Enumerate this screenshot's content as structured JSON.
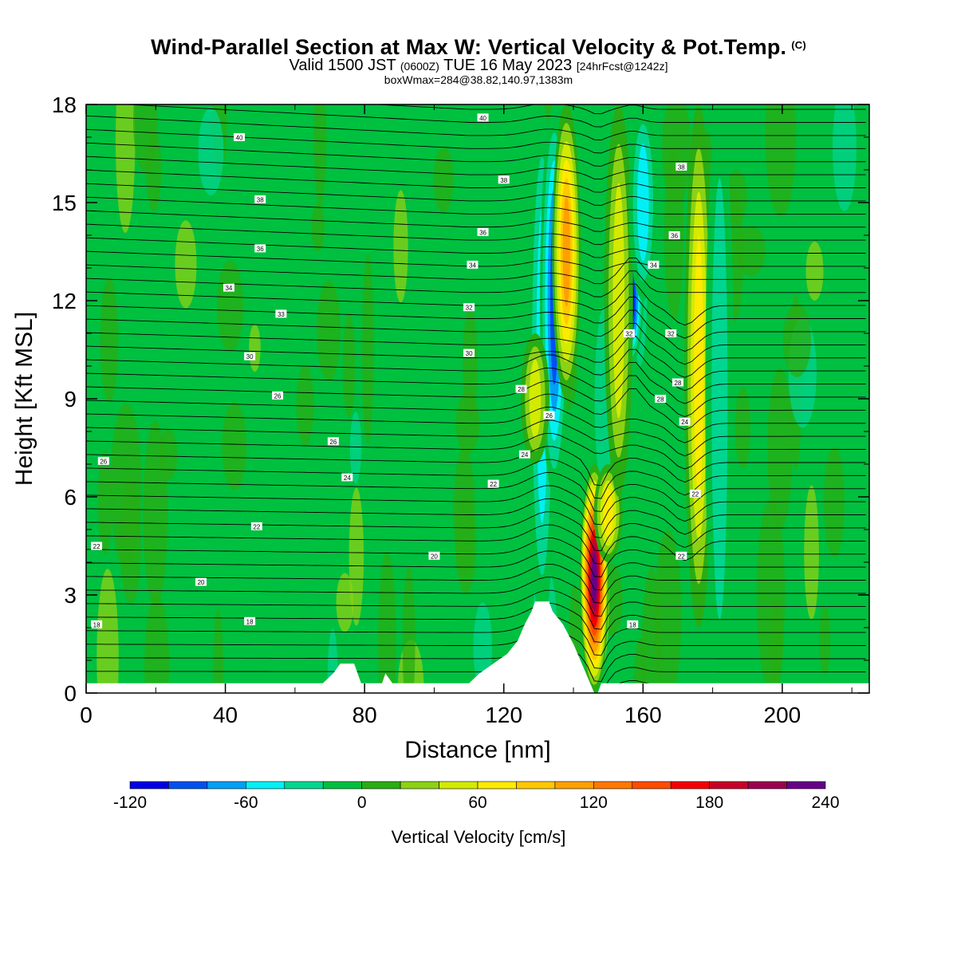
{
  "header": {
    "title": "Wind-Parallel Section at Max W: Vertical Velocity & Pot.Temp.",
    "copyright": "(C)",
    "valid_prefix": "Valid 1500 JST",
    "valid_utc": "(0600Z)",
    "valid_date": "TUE 16 May 2023",
    "forecast": "[24hrFcst@1242z]",
    "box_info": "boxWmax=284@38.82,140.97,1383m"
  },
  "chart_data": {
    "type": "heatmap",
    "xlabel": "Distance [nm]",
    "ylabel": "Height [Kft MSL]",
    "xlim": [
      0,
      225
    ],
    "ylim": [
      0,
      18
    ],
    "x_ticks": [
      "0",
      "40",
      "80",
      "120",
      "160",
      "200"
    ],
    "y_ticks": [
      "0",
      "3",
      "6",
      "9",
      "12",
      "15",
      "18"
    ],
    "colorbar": {
      "label": "Vertical Velocity [cm/s]",
      "ticks": [
        "-120",
        "-60",
        "0",
        "60",
        "120",
        "180",
        "240"
      ],
      "range": [
        -120,
        240
      ],
      "step": 20,
      "colors": [
        "#0000e6",
        "#0050f0",
        "#00a0f5",
        "#00f0f5",
        "#00d68f",
        "#00c040",
        "#28ad14",
        "#8cd214",
        "#d2eb00",
        "#ffea00",
        "#ffc800",
        "#ffa000",
        "#ff7800",
        "#ff4b00",
        "#f50000",
        "#c80028",
        "#9b0050",
        "#660088"
      ]
    },
    "vertical_velocity_features": [
      {
        "x": 131,
        "z": [
          2,
          18
        ],
        "w": -40
      },
      {
        "x": 134.5,
        "z": [
          6,
          18
        ],
        "w": -80
      },
      {
        "x": 138,
        "z": [
          9,
          18
        ],
        "w": 100
      },
      {
        "x": 129,
        "z": [
          7,
          11
        ],
        "w": 40
      },
      {
        "x": 146,
        "z": [
          0,
          7
        ],
        "w": 220
      },
      {
        "x": 150,
        "z": [
          4,
          7
        ],
        "w": 60
      },
      {
        "x": 156,
        "z": [
          10,
          14
        ],
        "w": -120
      },
      {
        "x": 153,
        "z": [
          6,
          18
        ],
        "w": 40
      },
      {
        "x": 160,
        "z": [
          12,
          18
        ],
        "w": -40
      },
      {
        "x": 176,
        "z": [
          2,
          18
        ],
        "w": 60
      },
      {
        "x": 182,
        "z": [
          0,
          18
        ],
        "w": -20
      }
    ],
    "terrain": [
      [
        0,
        0.3
      ],
      [
        68,
        0.3
      ],
      [
        71,
        0.6
      ],
      [
        73,
        0.9
      ],
      [
        77,
        0.9
      ],
      [
        79,
        0.3
      ],
      [
        85,
        0.3
      ],
      [
        86,
        0.6
      ],
      [
        88,
        0.3
      ],
      [
        95,
        0.3
      ],
      [
        110,
        0.3
      ],
      [
        113,
        0.6
      ],
      [
        117,
        0.9
      ],
      [
        121,
        1.2
      ],
      [
        124,
        1.6
      ],
      [
        126,
        2.1
      ],
      [
        128,
        2.5
      ],
      [
        129,
        2.8
      ],
      [
        133,
        2.8
      ],
      [
        134,
        2.5
      ],
      [
        137,
        2.1
      ],
      [
        140,
        1.5
      ],
      [
        142,
        1.0
      ],
      [
        144,
        0.5
      ],
      [
        146,
        0
      ],
      [
        147,
        0
      ],
      [
        148,
        0.3
      ],
      [
        225,
        0.3
      ]
    ],
    "isentropes": {
      "name": "Pot.Temp.",
      "labels": [
        {
          "text": "18",
          "x": 3,
          "z": 2.1
        },
        {
          "text": "18",
          "x": 47,
          "z": 2.2
        },
        {
          "text": "18",
          "x": 157,
          "z": 2.1
        },
        {
          "text": "20",
          "x": 33,
          "z": 3.4
        },
        {
          "text": "20",
          "x": 100,
          "z": 4.2
        },
        {
          "text": "22",
          "x": 3,
          "z": 4.5
        },
        {
          "text": "22",
          "x": 49,
          "z": 5.1
        },
        {
          "text": "22",
          "x": 117,
          "z": 6.4
        },
        {
          "text": "22",
          "x": 175,
          "z": 6.1
        },
        {
          "text": "22",
          "x": 171,
          "z": 4.2
        },
        {
          "text": "24",
          "x": 75,
          "z": 6.6
        },
        {
          "text": "24",
          "x": 126,
          "z": 7.3
        },
        {
          "text": "24",
          "x": 172,
          "z": 8.3
        },
        {
          "text": "26",
          "x": 5,
          "z": 7.1
        },
        {
          "text": "26",
          "x": 71,
          "z": 7.7
        },
        {
          "text": "26",
          "x": 133,
          "z": 8.5
        },
        {
          "text": "26",
          "x": 55,
          "z": 9.1
        },
        {
          "text": "28",
          "x": 125,
          "z": 9.3
        },
        {
          "text": "28",
          "x": 165,
          "z": 9.0
        },
        {
          "text": "28",
          "x": 170,
          "z": 9.5
        },
        {
          "text": "30",
          "x": 47,
          "z": 10.3
        },
        {
          "text": "30",
          "x": 110,
          "z": 10.4
        },
        {
          "text": "32",
          "x": 168,
          "z": 11.0
        },
        {
          "text": "32",
          "x": 156,
          "z": 11.0
        },
        {
          "text": "32",
          "x": 110,
          "z": 11.8
        },
        {
          "text": "33",
          "x": 56,
          "z": 11.6
        },
        {
          "text": "34",
          "x": 41,
          "z": 12.4
        },
        {
          "text": "34",
          "x": 111,
          "z": 13.1
        },
        {
          "text": "34",
          "x": 163,
          "z": 13.1
        },
        {
          "text": "36",
          "x": 50,
          "z": 13.6
        },
        {
          "text": "36",
          "x": 114,
          "z": 14.1
        },
        {
          "text": "36",
          "x": 169,
          "z": 14.0
        },
        {
          "text": "38",
          "x": 50,
          "z": 15.1
        },
        {
          "text": "38",
          "x": 120,
          "z": 15.7
        },
        {
          "text": "38",
          "x": 171,
          "z": 16.1
        },
        {
          "text": "40",
          "x": 44,
          "z": 17.0
        },
        {
          "text": "40",
          "x": 114,
          "z": 17.6
        }
      ]
    }
  }
}
